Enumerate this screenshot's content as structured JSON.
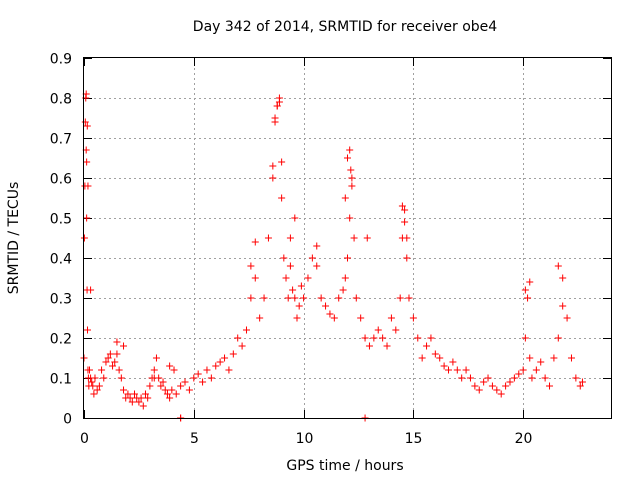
{
  "chart_data": {
    "type": "scatter",
    "title": "Day 342 of 2014, SRMTID for receiver obe4",
    "xlabel": "GPS time / hours",
    "ylabel": "SRMTID / TECUs",
    "xlim": [
      0,
      24
    ],
    "ylim": [
      0,
      0.9
    ],
    "xticks": [
      0,
      5,
      10,
      15,
      20
    ],
    "xtick_labels": [
      "0",
      "5",
      "10",
      "15",
      "20"
    ],
    "yticks": [
      0,
      0.1,
      0.2,
      0.3,
      0.4,
      0.5,
      0.6,
      0.7,
      0.8,
      0.9
    ],
    "ytick_labels": [
      "0",
      "0.1",
      "0.2",
      "0.3",
      "0.4",
      "0.5",
      "0.6",
      "0.7",
      "0.8",
      "0.9"
    ],
    "grid": true,
    "marker": "+",
    "series": [
      {
        "name": "SRMTID",
        "color": "#ff0000",
        "x": [
          0.0,
          0.02,
          0.04,
          0.06,
          0.08,
          0.1,
          0.12,
          0.14,
          0.16,
          0.18,
          0.2,
          0.22,
          0.25,
          0.3,
          0.35,
          0.4,
          0.45,
          0.5,
          0.6,
          0.7,
          0.8,
          0.9,
          1.0,
          1.1,
          1.2,
          1.3,
          1.4,
          1.5,
          1.6,
          1.7,
          1.8,
          1.9,
          2.0,
          2.1,
          2.2,
          2.3,
          2.4,
          2.5,
          2.6,
          2.7,
          2.8,
          2.9,
          3.0,
          3.1,
          3.2,
          3.3,
          3.4,
          3.5,
          3.6,
          3.7,
          3.8,
          3.9,
          4.0,
          4.2,
          4.4,
          4.6,
          4.8,
          5.0,
          5.2,
          5.4,
          5.6,
          5.8,
          6.0,
          6.2,
          6.4,
          6.6,
          6.8,
          7.0,
          7.2,
          7.4,
          7.6,
          7.8,
          8.0,
          8.2,
          8.4,
          8.6,
          8.7,
          8.8,
          8.9,
          9.0,
          9.1,
          9.2,
          9.3,
          9.4,
          9.5,
          9.6,
          9.7,
          9.8,
          9.9,
          10.0,
          10.2,
          10.4,
          10.6,
          10.8,
          11.0,
          11.2,
          11.4,
          11.6,
          11.8,
          11.9,
          12.0,
          12.1,
          12.2,
          12.3,
          12.4,
          12.6,
          12.8,
          13.0,
          13.2,
          13.4,
          13.6,
          13.8,
          14.0,
          14.2,
          14.4,
          14.5,
          14.6,
          14.7,
          14.8,
          15.0,
          15.2,
          15.4,
          15.6,
          15.8,
          16.0,
          16.2,
          16.4,
          16.6,
          16.8,
          17.0,
          17.2,
          17.4,
          17.6,
          17.8,
          18.0,
          18.2,
          18.4,
          18.6,
          18.8,
          19.0,
          19.2,
          19.4,
          19.6,
          19.8,
          20.0,
          20.1,
          20.2,
          20.3,
          20.4,
          20.6,
          20.8,
          21.0,
          21.2,
          21.4,
          21.6,
          21.8,
          22.0,
          22.2,
          22.4,
          22.6,
          22.7,
          0.1,
          0.15,
          0.12,
          0.18,
          0.3,
          1.5,
          1.8,
          3.2,
          3.9,
          4.1,
          4.4,
          7.6,
          7.8,
          8.6,
          8.7,
          8.8,
          8.9,
          9.0,
          9.4,
          9.6,
          10.6,
          11.9,
          12.0,
          12.1,
          12.15,
          12.2,
          12.9,
          14.5,
          14.6,
          14.7,
          20.1,
          20.3,
          21.6,
          21.8,
          12.8,
          4.4
        ],
        "y": [
          0.15,
          0.45,
          0.58,
          0.74,
          0.8,
          0.67,
          0.5,
          0.32,
          0.22,
          0.12,
          0.1,
          0.08,
          0.12,
          0.1,
          0.09,
          0.08,
          0.06,
          0.1,
          0.07,
          0.08,
          0.12,
          0.1,
          0.14,
          0.15,
          0.16,
          0.13,
          0.14,
          0.16,
          0.12,
          0.1,
          0.07,
          0.05,
          0.06,
          0.05,
          0.04,
          0.06,
          0.05,
          0.04,
          0.05,
          0.03,
          0.06,
          0.05,
          0.08,
          0.1,
          0.12,
          0.15,
          0.1,
          0.08,
          0.09,
          0.07,
          0.06,
          0.05,
          0.07,
          0.06,
          0.08,
          0.09,
          0.07,
          0.1,
          0.11,
          0.09,
          0.12,
          0.1,
          0.13,
          0.14,
          0.15,
          0.12,
          0.16,
          0.2,
          0.18,
          0.22,
          0.3,
          0.35,
          0.25,
          0.3,
          0.45,
          0.6,
          0.75,
          0.78,
          0.8,
          0.55,
          0.4,
          0.35,
          0.3,
          0.38,
          0.32,
          0.3,
          0.25,
          0.28,
          0.33,
          0.3,
          0.35,
          0.4,
          0.38,
          0.3,
          0.28,
          0.26,
          0.25,
          0.3,
          0.32,
          0.35,
          0.4,
          0.5,
          0.6,
          0.45,
          0.3,
          0.25,
          0.2,
          0.18,
          0.2,
          0.22,
          0.2,
          0.18,
          0.25,
          0.22,
          0.3,
          0.45,
          0.52,
          0.4,
          0.3,
          0.25,
          0.2,
          0.15,
          0.18,
          0.2,
          0.16,
          0.15,
          0.13,
          0.12,
          0.14,
          0.12,
          0.1,
          0.12,
          0.1,
          0.08,
          0.07,
          0.09,
          0.1,
          0.08,
          0.07,
          0.06,
          0.08,
          0.09,
          0.1,
          0.11,
          0.12,
          0.2,
          0.3,
          0.15,
          0.1,
          0.12,
          0.14,
          0.1,
          0.08,
          0.15,
          0.2,
          0.35,
          0.25,
          0.15,
          0.1,
          0.08,
          0.09,
          0.81,
          0.73,
          0.64,
          0.58,
          0.32,
          0.19,
          0.18,
          0.1,
          0.13,
          0.12,
          0.0,
          0.38,
          0.44,
          0.63,
          0.74,
          0.78,
          0.79,
          0.64,
          0.45,
          0.5,
          0.43,
          0.55,
          0.65,
          0.67,
          0.62,
          0.58,
          0.45,
          0.53,
          0.49,
          0.45,
          0.32,
          0.34,
          0.38,
          0.28,
          0.0,
          0.0
        ]
      }
    ]
  }
}
